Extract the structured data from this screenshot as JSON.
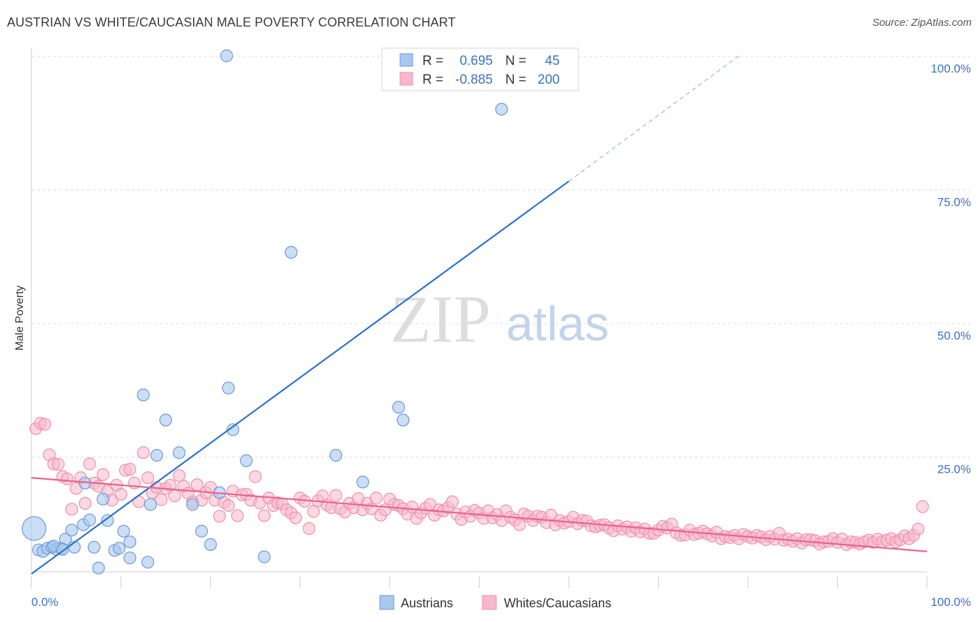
{
  "header": {
    "title": "AUSTRIAN VS WHITE/CAUCASIAN MALE POVERTY CORRELATION CHART",
    "source": "Source: ZipAtlas.com"
  },
  "watermark": {
    "zip": "ZIP",
    "atlas": "atlas"
  },
  "colors": {
    "blue_fill": "#a9c8ef",
    "blue_stroke": "#6a9ad8",
    "blue_line": "#2a6fcc",
    "pink_fill": "#f7b8cb",
    "pink_stroke": "#ef8eac",
    "pink_line": "#e8628e",
    "axis_label": "#3a72c4",
    "grid": "#dddddd"
  },
  "stats_legend": {
    "rows": [
      {
        "r_label": "R =",
        "r_value": "0.695",
        "n_label": "N =",
        "n_value": "45"
      },
      {
        "r_label": "R =",
        "r_value": "-0.885",
        "n_label": "N =",
        "n_value": "200"
      }
    ]
  },
  "bottom_legend": {
    "items": [
      "Austrians",
      "Whites/Caucasians"
    ]
  },
  "chart_data": {
    "type": "scatter",
    "title": "AUSTRIAN VS WHITE/CAUCASIAN MALE POVERTY CORRELATION CHART",
    "xlabel": "",
    "ylabel": "Male Poverty",
    "xlim": [
      0,
      100
    ],
    "ylim": [
      0,
      100
    ],
    "x_tick_labels": [
      "0.0%",
      "100.0%"
    ],
    "y_tick_labels": [
      "25.0%",
      "50.0%",
      "75.0%",
      "100.0%"
    ],
    "y_ticks": [
      25,
      50,
      75,
      100
    ],
    "grid": true,
    "legend_position": "bottom-center",
    "series": [
      {
        "name": "Austrians",
        "color": "#a9c8ef",
        "points": [
          [
            0.3,
            11.5
          ],
          [
            0.8,
            7.5
          ],
          [
            1.3,
            7.2
          ],
          [
            1.8,
            7.8
          ],
          [
            2.3,
            8.0
          ],
          [
            2.8,
            7.6
          ],
          [
            3.3,
            7.8
          ],
          [
            3.8,
            9.5
          ],
          [
            4.8,
            8.0
          ],
          [
            4.5,
            11.2
          ],
          [
            5.8,
            12.2
          ],
          [
            6.5,
            13.1
          ],
          [
            7.0,
            8.0
          ],
          [
            8.0,
            17.0
          ],
          [
            8.5,
            13.0
          ],
          [
            9.3,
            7.4
          ],
          [
            9.8,
            7.8
          ],
          [
            10.3,
            11.0
          ],
          [
            11.0,
            9.0
          ],
          [
            12.5,
            36.5
          ],
          [
            13.0,
            5.2
          ],
          [
            13.3,
            16.0
          ],
          [
            14.0,
            25.2
          ],
          [
            15.0,
            31.8
          ],
          [
            16.5,
            25.7
          ],
          [
            18.0,
            16.0
          ],
          [
            19.0,
            11.0
          ],
          [
            20.0,
            8.5
          ],
          [
            21.0,
            18.2
          ],
          [
            22.0,
            37.8
          ],
          [
            22.5,
            30.0
          ],
          [
            24.0,
            24.2
          ],
          [
            26.0,
            6.2
          ],
          [
            29.0,
            63.2
          ],
          [
            34.0,
            25.2
          ],
          [
            37.0,
            20.2
          ],
          [
            41.0,
            34.2
          ],
          [
            41.5,
            31.8
          ],
          [
            52.5,
            90.0
          ],
          [
            6.0,
            20.0
          ],
          [
            2.5,
            8.2
          ],
          [
            3.5,
            7.6
          ],
          [
            7.5,
            4.1
          ],
          [
            11.0,
            6.0
          ],
          [
            21.8,
            100.0
          ]
        ],
        "trend": {
          "x": [
            0,
            60
          ],
          "y": [
            3.0,
            76.5
          ]
        },
        "trend_extension": {
          "x": [
            60,
            79
          ],
          "y": [
            76.5,
            100.0
          ]
        }
      },
      {
        "name": "Whites/Caucasians",
        "color": "#f7b8cb",
        "points": [
          [
            0.5,
            30.2
          ],
          [
            1.0,
            31.2
          ],
          [
            1.5,
            31.0
          ],
          [
            2.0,
            25.3
          ],
          [
            2.5,
            23.6
          ],
          [
            3.0,
            23.5
          ],
          [
            3.5,
            21.2
          ],
          [
            4.0,
            20.8
          ],
          [
            4.5,
            15.1
          ],
          [
            5.0,
            19.0
          ],
          [
            5.5,
            21.0
          ],
          [
            6.0,
            16.2
          ],
          [
            6.5,
            23.6
          ],
          [
            7.0,
            20.0
          ],
          [
            7.5,
            19.4
          ],
          [
            8.0,
            21.6
          ],
          [
            8.5,
            18.5
          ],
          [
            9.0,
            16.8
          ],
          [
            9.5,
            19.6
          ],
          [
            10.0,
            17.9
          ],
          [
            10.5,
            22.4
          ],
          [
            11.0,
            22.6
          ],
          [
            11.5,
            20.0
          ],
          [
            12.0,
            16.5
          ],
          [
            12.5,
            25.7
          ],
          [
            13.0,
            21.0
          ],
          [
            13.5,
            18.2
          ],
          [
            14.0,
            19.2
          ],
          [
            14.5,
            16.9
          ],
          [
            15.0,
            19.0
          ],
          [
            15.5,
            19.6
          ],
          [
            16.0,
            17.6
          ],
          [
            16.5,
            21.4
          ],
          [
            17.0,
            19.4
          ],
          [
            17.5,
            18.1
          ],
          [
            18.0,
            16.5
          ],
          [
            18.5,
            19.7
          ],
          [
            19.0,
            16.8
          ],
          [
            19.5,
            18.2
          ],
          [
            20.0,
            19.2
          ],
          [
            20.5,
            16.8
          ],
          [
            21.0,
            13.8
          ],
          [
            21.5,
            16.4
          ],
          [
            22.0,
            15.8
          ],
          [
            22.5,
            18.5
          ],
          [
            23.0,
            13.9
          ],
          [
            23.5,
            17.8
          ],
          [
            24.0,
            17.9
          ],
          [
            24.5,
            16.8
          ],
          [
            25.0,
            21.2
          ],
          [
            25.5,
            16.3
          ],
          [
            26.0,
            13.9
          ],
          [
            26.5,
            17.2
          ],
          [
            27.0,
            15.8
          ],
          [
            27.5,
            16.3
          ],
          [
            28.0,
            16.1
          ],
          [
            28.5,
            15.0
          ],
          [
            29.0,
            14.4
          ],
          [
            29.5,
            13.5
          ],
          [
            30.0,
            17.2
          ],
          [
            30.5,
            16.6
          ],
          [
            31.0,
            11.5
          ],
          [
            31.5,
            14.7
          ],
          [
            32.0,
            16.7
          ],
          [
            32.5,
            17.6
          ],
          [
            33.0,
            15.9
          ],
          [
            33.5,
            15.4
          ],
          [
            34.0,
            17.7
          ],
          [
            34.5,
            15.2
          ],
          [
            35.0,
            14.6
          ],
          [
            35.5,
            16.2
          ],
          [
            36.0,
            15.4
          ],
          [
            36.5,
            17.1
          ],
          [
            37.0,
            15.0
          ],
          [
            37.5,
            16.2
          ],
          [
            38.0,
            15.2
          ],
          [
            38.5,
            17.2
          ],
          [
            39.0,
            14.0
          ],
          [
            39.5,
            15.0
          ],
          [
            40.0,
            17.0
          ],
          [
            40.5,
            16.0
          ],
          [
            41.0,
            15.8
          ],
          [
            41.5,
            15.2
          ],
          [
            42.0,
            14.2
          ],
          [
            42.5,
            15.5
          ],
          [
            43.0,
            13.4
          ],
          [
            43.5,
            14.4
          ],
          [
            44.0,
            15.3
          ],
          [
            44.5,
            16.0
          ],
          [
            45.0,
            14.0
          ],
          [
            45.5,
            15.0
          ],
          [
            46.0,
            14.8
          ],
          [
            46.5,
            15.4
          ],
          [
            47.0,
            16.5
          ],
          [
            47.5,
            14.2
          ],
          [
            48.0,
            13.2
          ],
          [
            48.5,
            14.6
          ],
          [
            49.0,
            13.8
          ],
          [
            49.5,
            14.9
          ],
          [
            50.0,
            14.4
          ],
          [
            50.5,
            13.4
          ],
          [
            51.0,
            14.8
          ],
          [
            51.5,
            13.5
          ],
          [
            52.0,
            14.1
          ],
          [
            52.5,
            13.0
          ],
          [
            53.0,
            14.8
          ],
          [
            53.5,
            13.6
          ],
          [
            54.0,
            13.1
          ],
          [
            54.5,
            12.2
          ],
          [
            55.0,
            14.2
          ],
          [
            55.5,
            13.8
          ],
          [
            56.0,
            13.0
          ],
          [
            56.5,
            13.8
          ],
          [
            57.0,
            13.6
          ],
          [
            57.5,
            12.6
          ],
          [
            58.0,
            14.0
          ],
          [
            58.5,
            12.2
          ],
          [
            59.0,
            13.0
          ],
          [
            59.5,
            12.5
          ],
          [
            60.0,
            12.8
          ],
          [
            60.5,
            13.6
          ],
          [
            61.0,
            12.4
          ],
          [
            61.5,
            13.0
          ],
          [
            62.0,
            12.9
          ],
          [
            62.5,
            12.0
          ],
          [
            63.0,
            11.8
          ],
          [
            63.5,
            12.1
          ],
          [
            64.0,
            12.2
          ],
          [
            64.5,
            11.6
          ],
          [
            65.0,
            11.1
          ],
          [
            65.5,
            12.0
          ],
          [
            66.0,
            11.4
          ],
          [
            66.5,
            11.8
          ],
          [
            67.0,
            11.0
          ],
          [
            67.5,
            11.6
          ],
          [
            68.0,
            10.9
          ],
          [
            68.5,
            11.4
          ],
          [
            69.0,
            10.6
          ],
          [
            69.5,
            10.6
          ],
          [
            70.0,
            11.2
          ],
          [
            70.5,
            11.9
          ],
          [
            71.0,
            11.6
          ],
          [
            71.5,
            12.3
          ],
          [
            72.0,
            10.7
          ],
          [
            72.5,
            10.2
          ],
          [
            73.0,
            10.3
          ],
          [
            73.5,
            11.2
          ],
          [
            74.0,
            10.4
          ],
          [
            74.5,
            10.6
          ],
          [
            75.0,
            11.0
          ],
          [
            75.5,
            10.5
          ],
          [
            76.0,
            10.1
          ],
          [
            76.5,
            10.8
          ],
          [
            77.0,
            9.6
          ],
          [
            77.5,
            10.0
          ],
          [
            78.0,
            9.8
          ],
          [
            78.5,
            10.2
          ],
          [
            79.0,
            9.6
          ],
          [
            79.5,
            10.4
          ],
          [
            80.0,
            10.0
          ],
          [
            80.5,
            9.7
          ],
          [
            81.0,
            10.2
          ],
          [
            81.5,
            9.9
          ],
          [
            82.0,
            9.4
          ],
          [
            82.5,
            10.0
          ],
          [
            83.0,
            9.5
          ],
          [
            83.5,
            10.6
          ],
          [
            84.0,
            9.3
          ],
          [
            84.5,
            9.5
          ],
          [
            85.0,
            9.1
          ],
          [
            85.5,
            9.6
          ],
          [
            86.0,
            8.8
          ],
          [
            86.5,
            9.4
          ],
          [
            87.0,
            9.4
          ],
          [
            87.5,
            9.2
          ],
          [
            88.0,
            8.6
          ],
          [
            88.5,
            9.0
          ],
          [
            89.0,
            9.1
          ],
          [
            89.5,
            9.6
          ],
          [
            90.0,
            8.9
          ],
          [
            90.5,
            9.5
          ],
          [
            91.0,
            8.5
          ],
          [
            91.5,
            9.0
          ],
          [
            92.0,
            8.9
          ],
          [
            92.5,
            8.6
          ],
          [
            93.0,
            9.0
          ],
          [
            93.5,
            9.3
          ],
          [
            94.0,
            8.9
          ],
          [
            94.5,
            9.5
          ],
          [
            95.0,
            9.0
          ],
          [
            95.5,
            9.3
          ],
          [
            96.0,
            9.6
          ],
          [
            96.5,
            9.0
          ],
          [
            97.0,
            9.4
          ],
          [
            97.5,
            10.1
          ],
          [
            98.0,
            9.6
          ],
          [
            98.5,
            10.2
          ],
          [
            99.0,
            11.4
          ],
          [
            99.5,
            15.6
          ]
        ],
        "trend": {
          "x": [
            0,
            100
          ],
          "y": [
            21.0,
            7.2
          ]
        }
      }
    ]
  }
}
